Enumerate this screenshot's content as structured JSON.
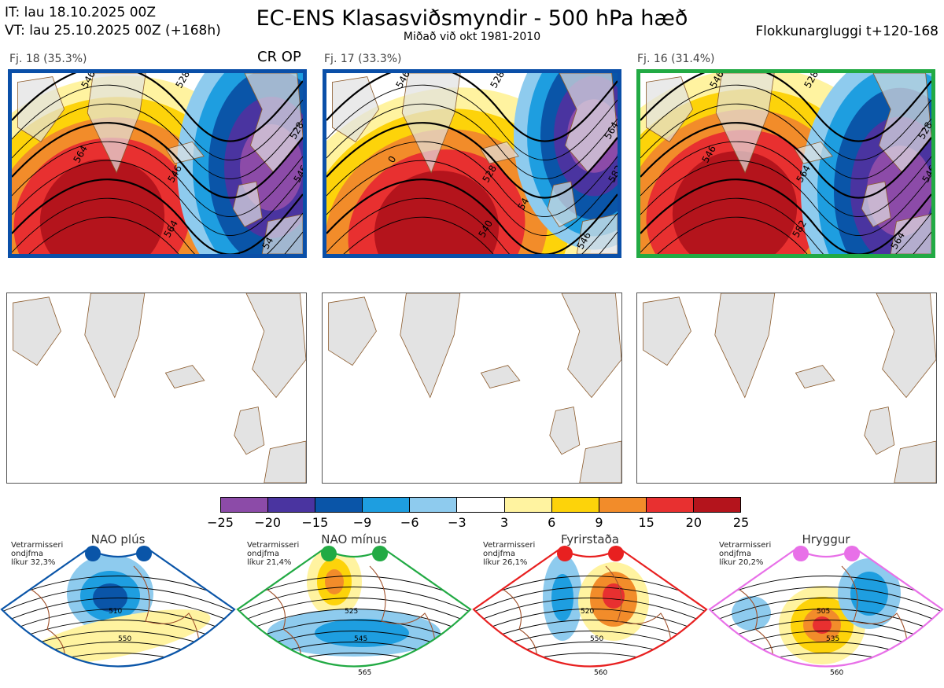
{
  "header": {
    "it": "IT: lau 18.10.2025 00Z",
    "vt": "VT: lau 25.10.2025 00Z  (+168h)",
    "title": "EC-ENS Klasasviðsmyndir - 500 hPa hæð",
    "subtitle": "Miðað við okt 1981-2010",
    "window": "Flokkunargluggi t+120-168"
  },
  "clusters": [
    {
      "label": "Fj. 18 (35.3%)",
      "border_color": "#0a4fa8",
      "contours": [
        "546",
        "528",
        "564",
        "546",
        "564",
        "528",
        "546",
        "54"
      ]
    },
    {
      "label": "Fj. 17 (33.3%)",
      "border_color": "#0a4fa8",
      "contours": [
        "546",
        "528",
        "0",
        "528",
        "540",
        "564",
        "582",
        "546",
        "54"
      ]
    },
    {
      "label": "Fj. 16 (31.4%)",
      "border_color": "#22aa44",
      "contours": [
        "546",
        "528",
        "546",
        "564",
        "582",
        "528",
        "546",
        "564"
      ]
    }
  ],
  "crop_label": "CR OP",
  "colorbar": {
    "colors": [
      "#8c4ba8",
      "#4a34a0",
      "#0a55a8",
      "#1e9ee0",
      "#8ecbee",
      "#ffffff",
      "#fff3a0",
      "#fdd30a",
      "#f28c2a",
      "#e83030",
      "#b4141c"
    ],
    "ticks": [
      "−25",
      "−20",
      "−15",
      "−9",
      "−6",
      "−3",
      "3",
      "6",
      "9",
      "15",
      "20",
      "25"
    ]
  },
  "regimes": [
    {
      "name": "NAO plús",
      "note": [
        "Vetrarmisseri",
        "ondjfma",
        "líkur 32,3%"
      ],
      "color": "#0a55a8",
      "labels": [
        "510",
        "550"
      ]
    },
    {
      "name": "NAO mínus",
      "note": [
        "Vetrarmisseri",
        "ondjfma",
        "líkur 21,4%"
      ],
      "color": "#22aa44",
      "labels": [
        "525",
        "545",
        "565"
      ]
    },
    {
      "name": "Fyrirstaða",
      "note": [
        "Vetrarmisseri",
        "ondjfma",
        "líkur 26,1%"
      ],
      "color": "#e82020",
      "labels": [
        "520",
        "550",
        "560"
      ]
    },
    {
      "name": "Hryggur",
      "note": [
        "Vetrarmisseri",
        "ondjfma",
        "líkur 20,2%"
      ],
      "color": "#e870e8",
      "labels": [
        "505",
        "535",
        "560"
      ]
    }
  ]
}
